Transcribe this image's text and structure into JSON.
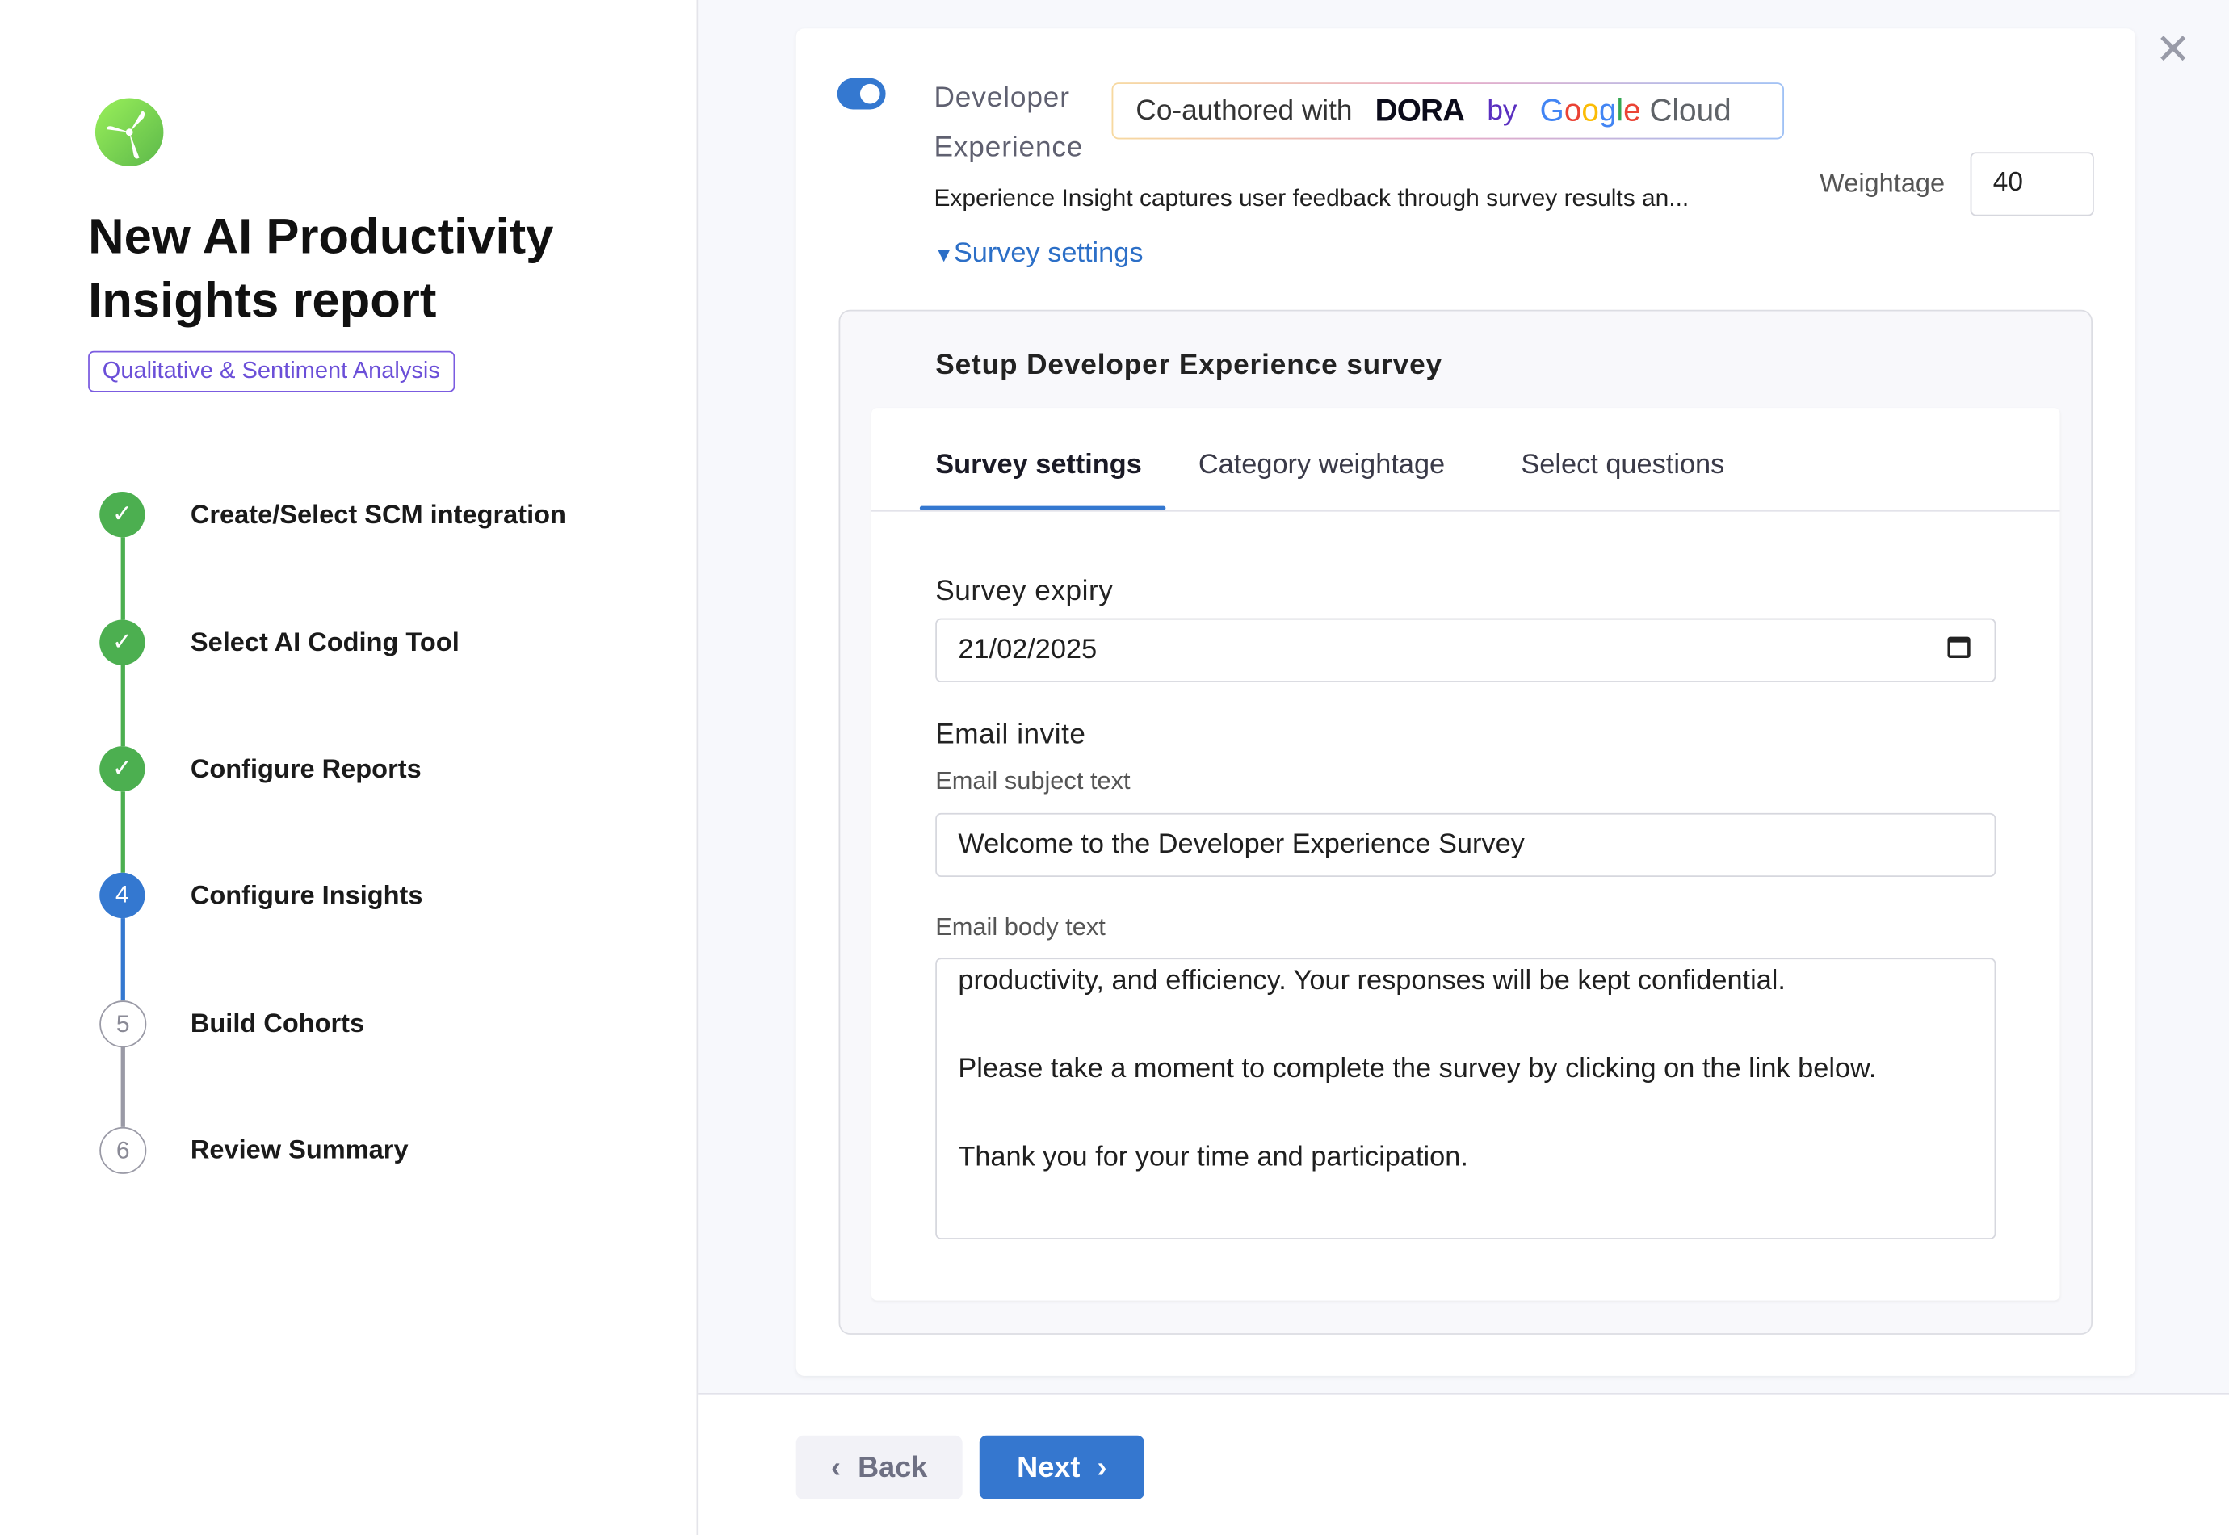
{
  "sidebar": {
    "title": "New AI Productivity Insights report",
    "badge": "Qualitative & Sentiment Analysis",
    "steps": [
      {
        "label": "Create/Select SCM integration",
        "status": "completed",
        "marker": "✓"
      },
      {
        "label": "Select AI Coding Tool",
        "status": "completed",
        "marker": "✓"
      },
      {
        "label": "Configure Reports",
        "status": "completed",
        "marker": "✓"
      },
      {
        "label": "Configure Insights",
        "status": "current",
        "marker": "4"
      },
      {
        "label": "Build Cohorts",
        "status": "pending",
        "marker": "5"
      },
      {
        "label": "Review Summary",
        "status": "pending",
        "marker": "6"
      }
    ]
  },
  "insight": {
    "toggle_on": true,
    "name": "Developer Experience",
    "coauthored": {
      "prefix": "Co-authored with",
      "dora": "DORA",
      "by": "by",
      "google": "Google",
      "cloud": "Cloud"
    },
    "description": "Experience Insight captures user feedback through survey results an...",
    "weightage_label": "Weightage",
    "weightage_value": "40",
    "survey_link": "Survey settings",
    "survey_link_icon": "triangle-down"
  },
  "survey": {
    "heading": "Setup Developer Experience survey",
    "tabs": [
      "Survey settings",
      "Category weightage",
      "Select questions"
    ],
    "active_tab": "Survey settings",
    "expiry_label": "Survey expiry",
    "expiry_value": "21/02/2025",
    "email_invite_label": "Email invite",
    "subject_label": "Email subject text",
    "subject_value": "Welcome to the Developer Experience Survey",
    "body_label": "Email body text",
    "body_lines": [
      "productivity, and efficiency. Your responses will be kept confidential.",
      "",
      "Please take a moment to complete the survey by clicking on the link below.",
      "",
      "Thank you for your time and participation."
    ]
  },
  "footer": {
    "back": "Back",
    "next": "Next"
  },
  "colors": {
    "accent": "#3577cf",
    "success": "#4caf50",
    "badge": "#6b4fd8"
  }
}
